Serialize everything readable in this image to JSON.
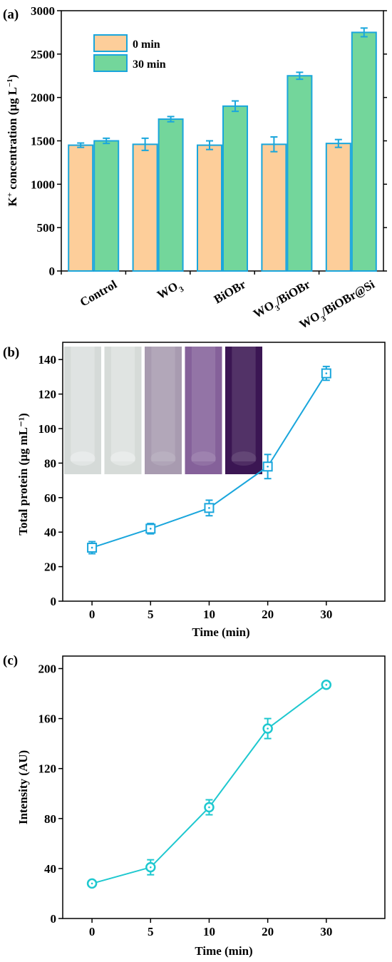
{
  "colors": {
    "bar_0min": "#FDCE9A",
    "bar_30min": "#73D69B",
    "bar_edge": "#1AA6DC",
    "line_b": "#1AA6DC",
    "line_c": "#1EC8CF",
    "tube_photos": [
      "#D5DAD8",
      "#D6DBD8",
      "#A89BB0",
      "#85619A",
      "#3B1653"
    ]
  },
  "chart_data": [
    {
      "panel_label": "(a)",
      "type": "bar",
      "categories": [
        "Control",
        "WO3",
        "BiOBr",
        "WO3/BiOBr",
        "WO3/BiOBr@Si"
      ],
      "category_labels": [
        [
          {
            "t": "Control"
          }
        ],
        [
          {
            "t": "WO"
          },
          {
            "t": "3",
            "sub": true
          }
        ],
        [
          {
            "t": "BiOBr"
          }
        ],
        [
          {
            "t": "WO"
          },
          {
            "t": "3",
            "sub": true
          },
          {
            "t": "/BiOBr"
          }
        ],
        [
          {
            "t": "WO"
          },
          {
            "t": "3",
            "sub": true
          },
          {
            "t": "/BiOBr@Si"
          }
        ]
      ],
      "series": [
        {
          "name": "0 min",
          "values": [
            1450,
            1460,
            1450,
            1460,
            1470
          ],
          "errors": [
            25,
            70,
            50,
            85,
            45
          ]
        },
        {
          "name": "30 min",
          "values": [
            1500,
            1750,
            1900,
            2250,
            2750
          ],
          "errors": [
            30,
            30,
            60,
            40,
            50
          ]
        }
      ],
      "ylabel": [
        {
          "t": "K"
        },
        {
          "t": "+",
          "sup": true
        },
        {
          "t": " concentration (μg L"
        },
        {
          "t": "−1",
          "sup": true
        },
        {
          "t": ")"
        }
      ],
      "ylim": [
        0,
        3000
      ],
      "yticks": [
        0,
        500,
        1000,
        1500,
        2000,
        2500,
        3000
      ],
      "legend_position": "top-left"
    },
    {
      "panel_label": "(b)",
      "type": "line",
      "x": [
        "0",
        "5",
        "10",
        "20",
        "30"
      ],
      "y": [
        31,
        42,
        54,
        78,
        132
      ],
      "errors": [
        3.5,
        3,
        4.5,
        7,
        4
      ],
      "marker": "square",
      "xlabel": "Time (min)",
      "ylabel": "Total protein  (μg mL⁻¹)",
      "ylim": [
        0,
        150
      ],
      "yticks": [
        0,
        20,
        40,
        60,
        80,
        100,
        120,
        140
      ],
      "inset": "five test-tube photos, colourless to dark purple"
    },
    {
      "panel_label": "(c)",
      "type": "line",
      "x": [
        "0",
        "5",
        "10",
        "20",
        "30"
      ],
      "y": [
        28,
        41,
        89,
        152,
        187
      ],
      "errors": [
        2,
        6,
        6,
        8,
        2
      ],
      "marker": "circle",
      "xlabel": "Time (min)",
      "ylabel": "Intensity (AU)",
      "ylim": [
        0,
        210
      ],
      "yticks": [
        0,
        40,
        80,
        120,
        160,
        200
      ]
    }
  ]
}
